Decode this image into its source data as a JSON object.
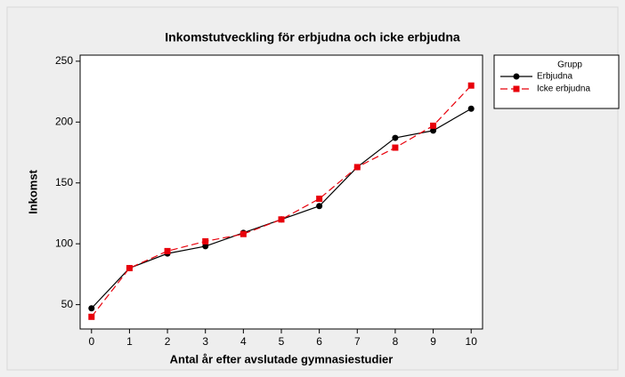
{
  "chart_data": {
    "type": "line",
    "title": "Inkomstutveckling för erbjudna och icke erbjudna",
    "x_label": "Antal år efter avslutade gymnasiestudier",
    "y_label": "Inkomst",
    "legend_title": "Grupp",
    "x": [
      0,
      1,
      2,
      3,
      4,
      5,
      6,
      7,
      8,
      9,
      10
    ],
    "series": [
      {
        "name": "Erbjudna",
        "color": "#000000",
        "marker": "circle",
        "dash": "solid",
        "values": [
          47,
          80,
          92,
          98,
          109,
          120,
          131,
          163,
          187,
          193,
          211
        ]
      },
      {
        "name": "Icke erbjudna",
        "color": "#e8000b",
        "marker": "square",
        "dash": "dashed",
        "values": [
          40,
          80,
          94,
          102,
          108,
          120,
          137,
          163,
          179,
          197,
          230
        ]
      }
    ],
    "xlim": [
      -0.3,
      10.3
    ],
    "xticks": [
      0,
      1,
      2,
      3,
      4,
      5,
      6,
      7,
      8,
      9,
      10
    ],
    "ylim": [
      30,
      255
    ],
    "yticks": [
      50,
      100,
      150,
      200,
      250
    ],
    "grid": false,
    "legend": "right"
  }
}
